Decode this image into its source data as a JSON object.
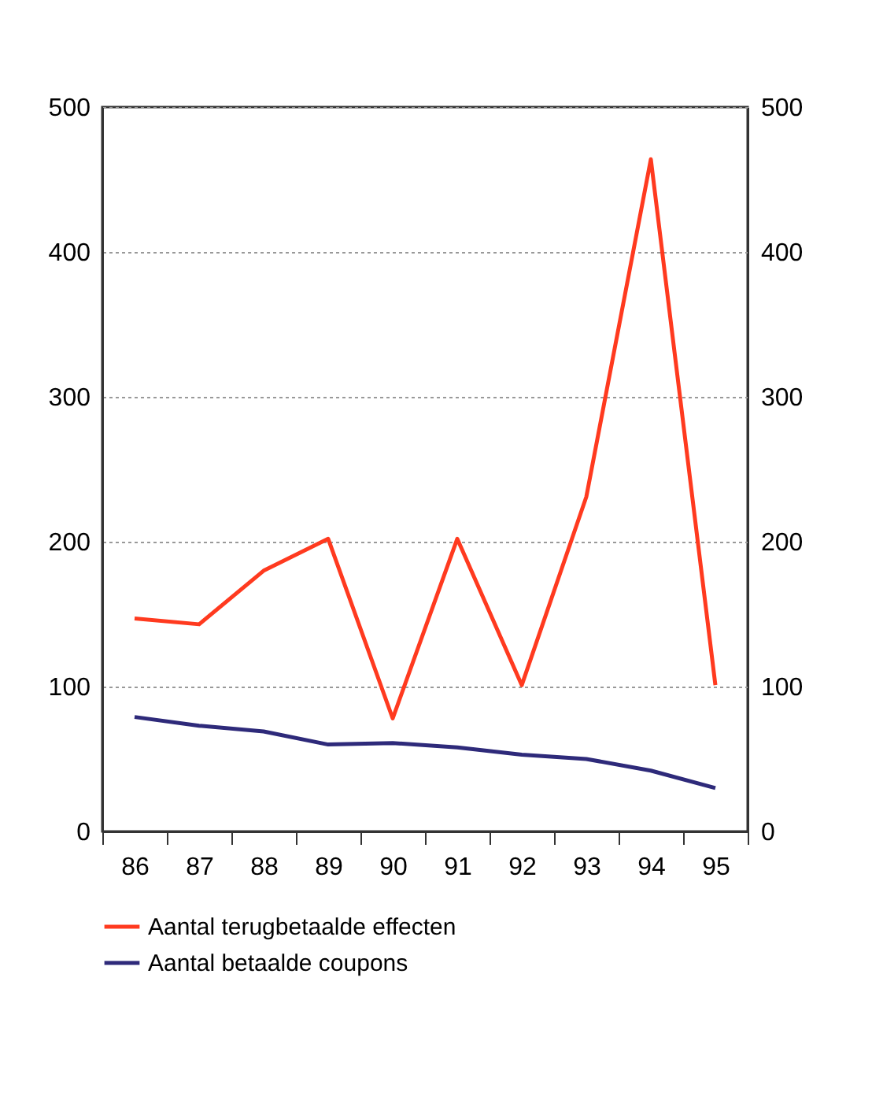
{
  "chart_data": {
    "type": "line",
    "categories": [
      "86",
      "87",
      "88",
      "89",
      "90",
      "91",
      "92",
      "93",
      "94",
      "95"
    ],
    "series": [
      {
        "name": "Aantal terugbetaalde effecten",
        "color": "#ff3a1f",
        "values": [
          147,
          143,
          180,
          202,
          78,
          202,
          101,
          231,
          464,
          101
        ]
      },
      {
        "name": "Aantal betaalde coupons",
        "color": "#2e2a7a",
        "values": [
          79,
          73,
          69,
          60,
          61,
          58,
          53,
          50,
          42,
          30
        ]
      }
    ],
    "ylim": [
      0,
      500
    ],
    "yticks": [
      0,
      100,
      200,
      300,
      400,
      500
    ],
    "y2lim": [
      0,
      500
    ],
    "y2ticks": [
      0,
      100,
      200,
      300,
      400,
      500
    ],
    "grid": "y",
    "legend": "bottom",
    "line_style": "solid",
    "marker": "none"
  }
}
